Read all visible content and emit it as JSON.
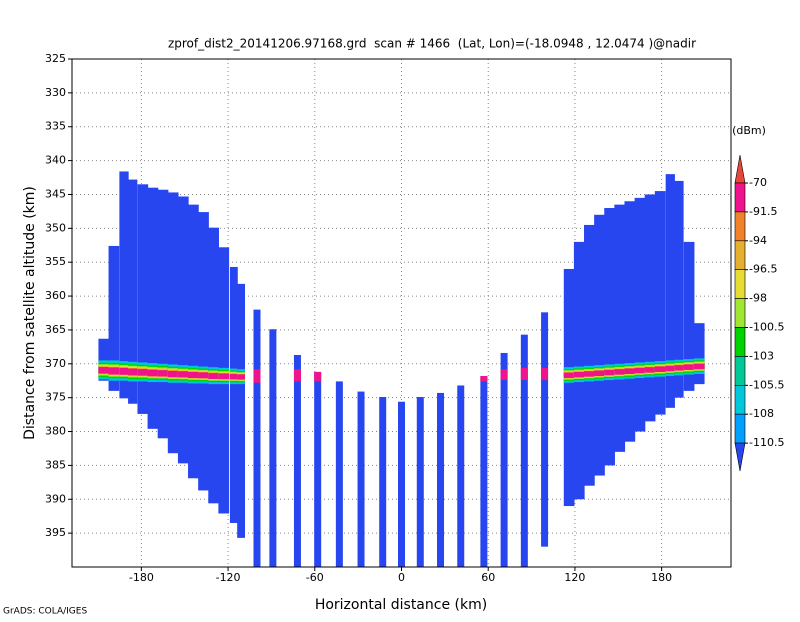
{
  "chart_data": {
    "type": "profile",
    "title": "zprof_dist2_20141206.97168.grd  scan # 1466  (Lat, Lon)=(-18.0948 , 12.0474 )@nadir",
    "x_label": "Horizontal distance (km)",
    "y_label": "Distance from satellite altitude (km)",
    "footer": "GrADS: COLA/IGES",
    "xlim": [
      -228,
      228
    ],
    "xticks": [
      -180,
      -120,
      -60,
      0,
      60,
      120,
      180
    ],
    "ylim": [
      325,
      400
    ],
    "yticks": [
      325,
      330,
      335,
      340,
      345,
      350,
      355,
      360,
      365,
      370,
      375,
      380,
      385,
      390,
      395
    ],
    "y_inverted": true,
    "grid": true,
    "colorbar": {
      "label": "(dBm)",
      "levels": [
        -70,
        -91.5,
        -94,
        -96.5,
        -98,
        -100.5,
        -103,
        -105.5,
        -108,
        -110.5
      ],
      "colors": [
        "#e8463a",
        "#f0148c",
        "#f0822a",
        "#e6af2d",
        "#e6dc32",
        "#a0e632",
        "#00d200",
        "#00c896",
        "#00c8dc",
        "#00a0ff",
        "#2846f0"
      ]
    },
    "columns": [
      {
        "x": -206,
        "top": 366.3,
        "bottom": 372.5,
        "surface_top": 369.5,
        "surface_bottom": 372.3
      },
      {
        "x": -199,
        "top": 352.6,
        "bottom": 374,
        "surface_top": 369.5,
        "surface_bottom": 372.5
      },
      {
        "x": -192,
        "top": 341.6,
        "bottom": 375.1,
        "surface_top": 369.6,
        "surface_bottom": 372.5
      },
      {
        "x": -186,
        "top": 342.8,
        "bottom": 375.9,
        "surface_top": 369.7,
        "surface_bottom": 372.6
      },
      {
        "x": -179,
        "top": 343.5,
        "bottom": 377.4,
        "surface_top": 369.8,
        "surface_bottom": 372.6
      },
      {
        "x": -172,
        "top": 344,
        "bottom": 379.6,
        "surface_top": 369.9,
        "surface_bottom": 372.7
      },
      {
        "x": -165,
        "top": 344.3,
        "bottom": 381,
        "surface_top": 370,
        "surface_bottom": 372.7
      },
      {
        "x": -158,
        "top": 344.7,
        "bottom": 383.2,
        "surface_top": 370.1,
        "surface_bottom": 372.8
      },
      {
        "x": -151,
        "top": 345.3,
        "bottom": 384.7,
        "surface_top": 370.2,
        "surface_bottom": 372.8
      },
      {
        "x": -144,
        "top": 346.5,
        "bottom": 386.9,
        "surface_top": 370.3,
        "surface_bottom": 372.9
      },
      {
        "x": -137,
        "top": 347.6,
        "bottom": 388.7,
        "surface_top": 370.4,
        "surface_bottom": 372.9
      },
      {
        "x": -130,
        "top": 349.9,
        "bottom": 390.6,
        "surface_top": 370.5,
        "surface_bottom": 373
      },
      {
        "x": -123,
        "top": 352.8,
        "bottom": 392.1,
        "surface_top": 370.6,
        "surface_bottom": 373
      },
      {
        "x": -116,
        "top": 355.7,
        "bottom": 393.5,
        "surface_top": 370.7,
        "surface_bottom": 373
      },
      {
        "x": -111,
        "top": 358.2,
        "bottom": 395.7,
        "surface_top": 370.8,
        "surface_bottom": 373
      },
      {
        "x": -100,
        "top": 362,
        "bottom": 400,
        "surface_top": 370.8,
        "surface_bottom": 372.8
      },
      {
        "x": -89,
        "top": 364.9,
        "bottom": 400,
        "surface_top": null,
        "surface_bottom": null
      },
      {
        "x": -72,
        "top": 368.7,
        "bottom": 400,
        "surface_top": 370.8,
        "surface_bottom": 372.6
      },
      {
        "x": -58,
        "top": 371.2,
        "bottom": 400,
        "surface_top": 371.2,
        "surface_bottom": 372.6
      },
      {
        "x": -43,
        "top": 372.6,
        "bottom": 400,
        "surface_top": null,
        "surface_bottom": null
      },
      {
        "x": -28,
        "top": 374.1,
        "bottom": 400,
        "surface_top": null,
        "surface_bottom": null
      },
      {
        "x": -13,
        "top": 374.9,
        "bottom": 400,
        "surface_top": null,
        "surface_bottom": null
      },
      {
        "x": 0,
        "top": 375.6,
        "bottom": 400,
        "surface_top": null,
        "surface_bottom": null
      },
      {
        "x": 13,
        "top": 374.9,
        "bottom": 400,
        "surface_top": null,
        "surface_bottom": null
      },
      {
        "x": 27,
        "top": 374.3,
        "bottom": 400,
        "surface_top": null,
        "surface_bottom": null
      },
      {
        "x": 41,
        "top": 373.2,
        "bottom": 400,
        "surface_top": null,
        "surface_bottom": null
      },
      {
        "x": 57,
        "top": 371.8,
        "bottom": 400,
        "surface_top": 371.8,
        "surface_bottom": 372.6
      },
      {
        "x": 71,
        "top": 368.4,
        "bottom": 400,
        "surface_top": 370.8,
        "surface_bottom": 372.4
      },
      {
        "x": 85,
        "top": 365.7,
        "bottom": 400,
        "surface_top": 370.6,
        "surface_bottom": 372.4
      },
      {
        "x": 99,
        "top": 362.4,
        "bottom": 397,
        "surface_top": 370.6,
        "surface_bottom": 372.4
      },
      {
        "x": 116,
        "top": 356,
        "bottom": 391,
        "surface_top": 370.5,
        "surface_bottom": 372.8
      },
      {
        "x": 123,
        "top": 352,
        "bottom": 390,
        "surface_top": 370.4,
        "surface_bottom": 372.7
      },
      {
        "x": 130,
        "top": 349.5,
        "bottom": 388,
        "surface_top": 370.3,
        "surface_bottom": 372.6
      },
      {
        "x": 137,
        "top": 348,
        "bottom": 386.5,
        "surface_top": 370.2,
        "surface_bottom": 372.5
      },
      {
        "x": 144,
        "top": 347,
        "bottom": 385,
        "surface_top": 370.1,
        "surface_bottom": 372.4
      },
      {
        "x": 151,
        "top": 346.5,
        "bottom": 383,
        "surface_top": 370,
        "surface_bottom": 372.3
      },
      {
        "x": 158,
        "top": 346,
        "bottom": 381.5,
        "surface_top": 369.9,
        "surface_bottom": 372.2
      },
      {
        "x": 165,
        "top": 345.5,
        "bottom": 380,
        "surface_top": 369.8,
        "surface_bottom": 372.1
      },
      {
        "x": 172,
        "top": 345,
        "bottom": 378.5,
        "surface_top": 369.7,
        "surface_bottom": 372
      },
      {
        "x": 179,
        "top": 344.5,
        "bottom": 377.5,
        "surface_top": 369.6,
        "surface_bottom": 371.9
      },
      {
        "x": 186,
        "top": 342,
        "bottom": 376.5,
        "surface_top": 369.5,
        "surface_bottom": 371.8
      },
      {
        "x": 192,
        "top": 343,
        "bottom": 375,
        "surface_top": 369.4,
        "surface_bottom": 371.7
      },
      {
        "x": 199,
        "top": 352,
        "bottom": 374,
        "surface_top": 369.3,
        "surface_bottom": 371.6
      },
      {
        "x": 206,
        "top": 364,
        "bottom": 373,
        "surface_top": 369.2,
        "surface_bottom": 371.5
      }
    ]
  }
}
